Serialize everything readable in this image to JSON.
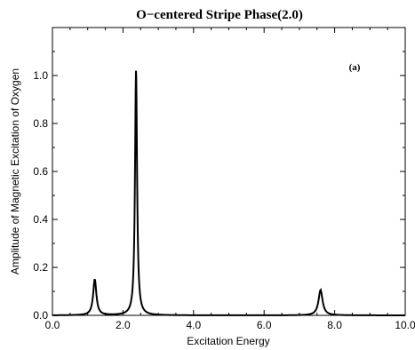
{
  "chart_data": {
    "type": "line",
    "title": "O−centered Stripe Phase(2.0)",
    "annotation": "(a)",
    "xlabel": "Excitation Energy",
    "ylabel": "Amplitude of Magnetic Excitation of Oxygen",
    "xlim": [
      0.0,
      10.0
    ],
    "ylim": [
      0.0,
      1.2
    ],
    "x_ticks": [
      0.0,
      2.0,
      4.0,
      6.0,
      8.0,
      10.0
    ],
    "x_tick_labels": [
      "0.0",
      "2.0",
      "4.0",
      "6.0",
      "8.0",
      "10.0"
    ],
    "y_ticks": [
      0.0,
      0.2,
      0.4,
      0.6,
      0.8,
      1.0
    ],
    "y_tick_labels": [
      "0.0",
      "0.2",
      "0.4",
      "0.6",
      "0.8",
      "1.0"
    ],
    "grid": false,
    "line_color": "#000000",
    "peaks": [
      {
        "center": 1.2,
        "height": 0.15,
        "width": 0.055
      },
      {
        "center": 2.37,
        "height": 1.02,
        "width": 0.035
      },
      {
        "center": 7.6,
        "height": 0.105,
        "width": 0.07
      }
    ],
    "series": [
      {
        "x": [
          0.0,
          0.8,
          1.0,
          1.1,
          1.15,
          1.2,
          1.25,
          1.3,
          1.4,
          1.6,
          2.0,
          2.2,
          2.3,
          2.34,
          2.37,
          2.4,
          2.44,
          2.5,
          2.7,
          3.5,
          5.0,
          7.0,
          7.3,
          7.45,
          7.55,
          7.6,
          7.65,
          7.75,
          7.9,
          8.2,
          9.0,
          10.0
        ],
        "y": [
          0.0,
          0.003,
          0.01,
          0.04,
          0.09,
          0.15,
          0.09,
          0.04,
          0.012,
          0.004,
          0.004,
          0.012,
          0.05,
          0.3,
          1.02,
          0.35,
          0.06,
          0.02,
          0.006,
          0.002,
          0.001,
          0.005,
          0.014,
          0.04,
          0.08,
          0.105,
          0.08,
          0.035,
          0.013,
          0.005,
          0.002,
          0.001
        ]
      }
    ]
  }
}
